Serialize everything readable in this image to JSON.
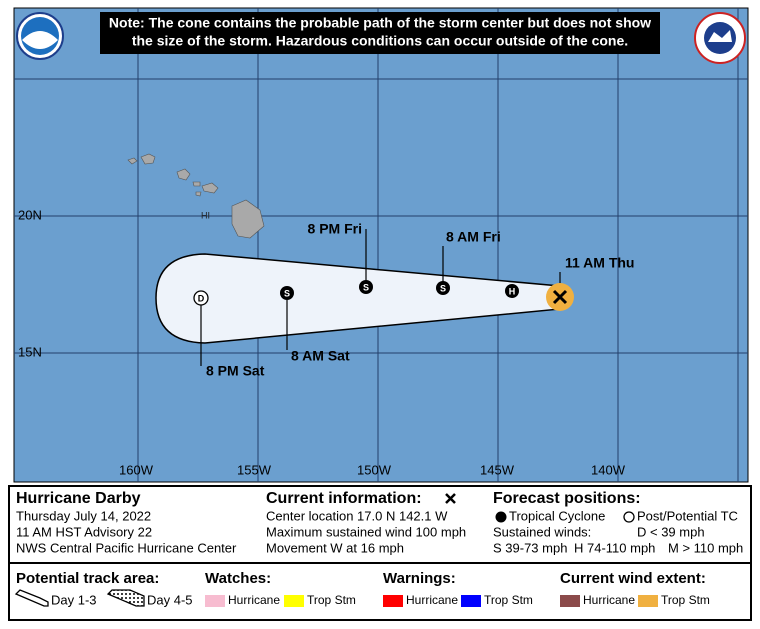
{
  "notice": [
    "Note: The cone contains the probable path of the storm center but does not show",
    "the size of the storm. Hazardous conditions can occur outside of the cone."
  ],
  "map": {
    "lat_labels": [
      "20N",
      "15N"
    ],
    "lon_labels": [
      "160W",
      "155W",
      "150W",
      "145W",
      "140W"
    ],
    "island_label": "HI",
    "points": [
      {
        "label": "11 AM Thu"
      },
      {
        "symbol": "H"
      },
      {
        "label": "8 AM Fri",
        "symbol": "S"
      },
      {
        "label": "8 PM Fri",
        "symbol": "S"
      },
      {
        "label": "8 AM Sat",
        "symbol": "S"
      },
      {
        "label": "8 PM Sat",
        "symbol": "D"
      }
    ]
  },
  "storm": {
    "name": "Hurricane Darby",
    "date": "Thursday July 14, 2022",
    "advisory": "11 AM HST Advisory 22",
    "center": "NWS Central Pacific Hurricane Center"
  },
  "current": {
    "title": "Current information:",
    "lines": [
      "Center location 17.0 N 142.1 W",
      "Maximum sustained wind 100 mph",
      "Movement W at 16 mph"
    ]
  },
  "forecast": {
    "title": "Forecast positions:",
    "tropical": "Tropical Cyclone",
    "post": "Post/Potential TC",
    "winds_label": "Sustained winds:",
    "d": "D < 39 mph",
    "s": "S 39-73 mph",
    "h": "H 74-110 mph",
    "m": "M > 110 mph"
  },
  "legend": {
    "track_title": "Potential track area:",
    "day13": "Day 1-3",
    "day45": "Day 4-5",
    "watches": {
      "title": "Watches:",
      "hurricane": "Hurricane",
      "trop": "Trop Stm"
    },
    "warnings": {
      "title": "Warnings:",
      "hurricane": "Hurricane",
      "trop": "Trop Stm"
    },
    "wind": {
      "title": "Current wind extent:",
      "hurricane": "Hurricane",
      "trop": "Trop Stm"
    }
  }
}
